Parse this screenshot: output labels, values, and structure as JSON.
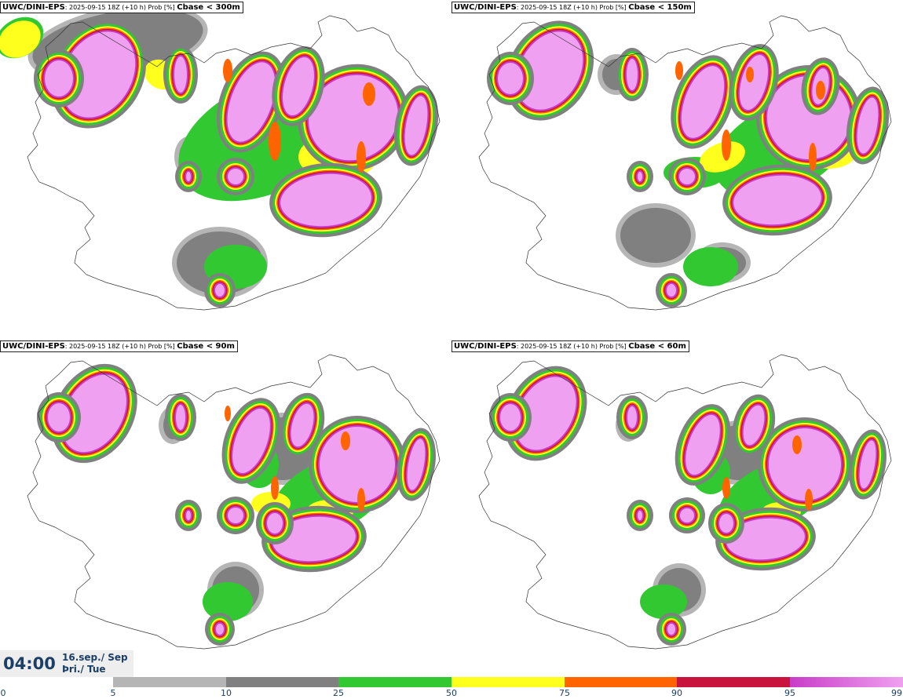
{
  "panels": [
    {
      "model": "UWC/DINI-EPS",
      "info": ": 2025-09-15 18Z (+10 h) Prob [%] ",
      "cbase": "Cbase < 300m"
    },
    {
      "model": "UWC/DINI-EPS",
      "info": ": 2025-09-15 18Z (+10 h) Prob [%] ",
      "cbase": "Cbase < 150m"
    },
    {
      "model": "UWC/DINI-EPS",
      "info": ": 2025-09-15 18Z (+10 h) Prob [%] ",
      "cbase": "Cbase < 90m"
    },
    {
      "model": "UWC/DINI-EPS",
      "info": ": 2025-09-15 18Z (+10 h) Prob [%] ",
      "cbase": "Cbase < 60m"
    }
  ],
  "time": {
    "hour": "04:00",
    "date": "16.sep./ Sep",
    "day": "Þri./ Tue"
  },
  "colorbar": {
    "colors": [
      "#b5b5b5",
      "#808080",
      "#32c832",
      "#ffff1e",
      "#ff6400",
      "#c8143c",
      "#c83cc8",
      "#f0a0f0"
    ],
    "ticks": [
      "0",
      "5",
      "10",
      "25",
      "50",
      "75",
      "90",
      "95",
      "99"
    ]
  }
}
